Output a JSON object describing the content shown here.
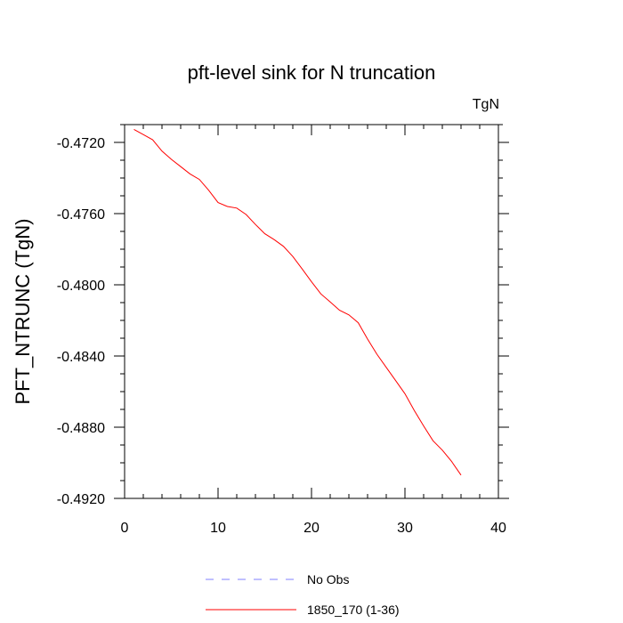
{
  "chart_data": {
    "type": "line",
    "title": "pft-level sink for N truncation",
    "units_label": "TgN",
    "ylabel": "PFT_NTRUNC  (TgN)",
    "xlabel": "",
    "xlim": [
      0,
      40
    ],
    "ylim": [
      -0.492,
      -0.471
    ],
    "x_ticks": [
      0,
      10,
      20,
      30,
      40
    ],
    "x_tick_labels": [
      "0",
      "10",
      "20",
      "30",
      "40"
    ],
    "y_ticks": [
      -0.472,
      -0.476,
      -0.48,
      -0.484,
      -0.488,
      -0.492
    ],
    "y_tick_labels": [
      "-0.4720",
      "-0.4760",
      "-0.4800",
      "-0.4840",
      "-0.4880",
      "-0.4920"
    ],
    "grid": false,
    "legend_position": "bottom",
    "series": [
      {
        "name": "1850_170 (1-36)",
        "color": "#ff0000",
        "dash": "solid",
        "x": [
          1,
          2,
          3,
          4,
          5,
          6,
          7,
          8,
          9,
          10,
          11,
          12,
          13,
          14,
          15,
          16,
          17,
          18,
          19,
          20,
          21,
          22,
          23,
          24,
          25,
          26,
          27,
          28,
          29,
          30,
          31,
          32,
          33,
          34,
          35,
          36
        ],
        "y": [
          -0.47127,
          -0.47156,
          -0.47185,
          -0.47249,
          -0.47295,
          -0.47336,
          -0.47377,
          -0.47408,
          -0.47469,
          -0.47538,
          -0.4756,
          -0.47569,
          -0.47605,
          -0.47661,
          -0.47713,
          -0.47746,
          -0.47784,
          -0.47841,
          -0.47911,
          -0.47983,
          -0.48051,
          -0.48096,
          -0.48143,
          -0.48169,
          -0.48213,
          -0.48305,
          -0.4839,
          -0.48464,
          -0.48538,
          -0.48612,
          -0.48706,
          -0.48793,
          -0.48876,
          -0.48929,
          -0.48993,
          -0.49069
        ]
      }
    ],
    "legend": [
      {
        "label": "No Obs",
        "color": "#8080ff",
        "dash": "dashed"
      },
      {
        "label": "1850_170 (1-36)",
        "color": "#ff0000",
        "dash": "solid"
      }
    ]
  }
}
